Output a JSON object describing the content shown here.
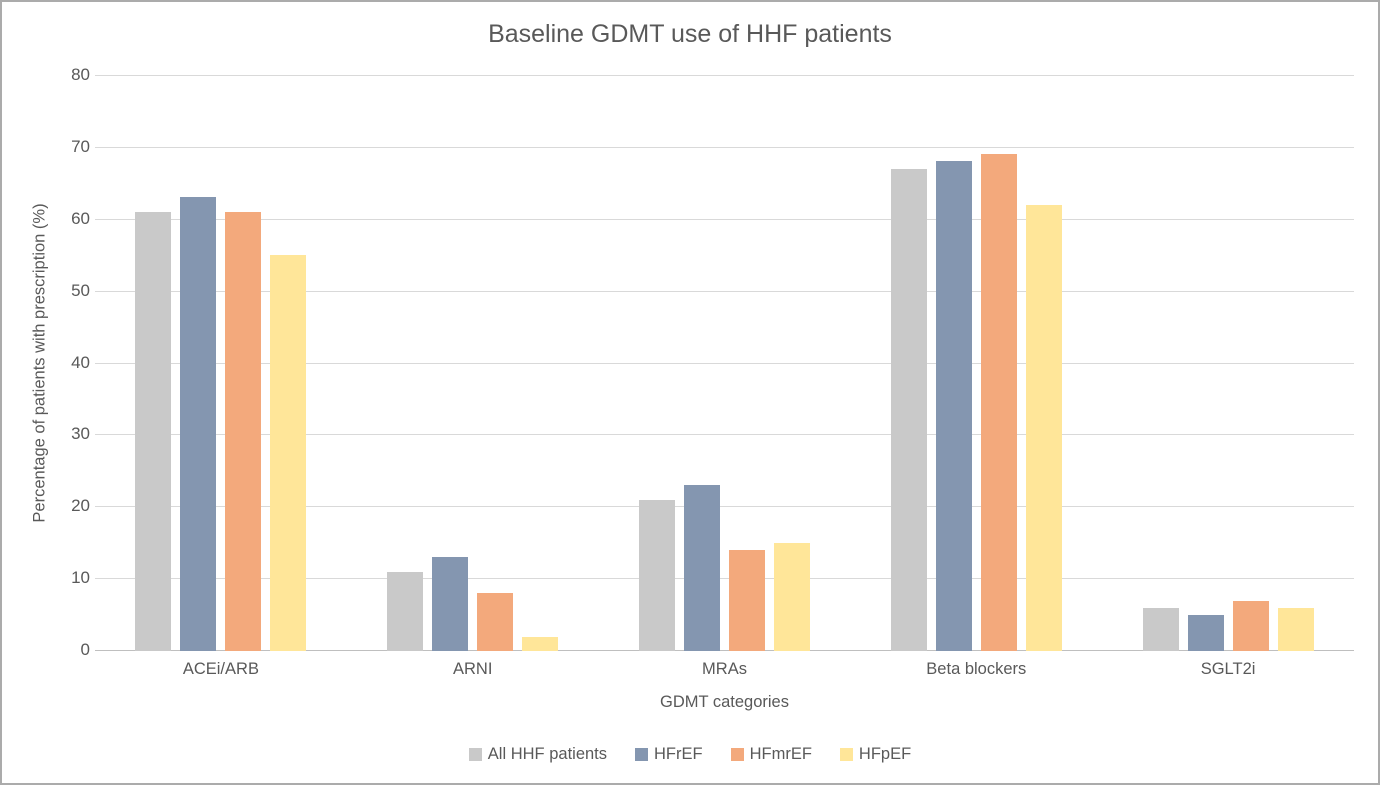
{
  "window": {
    "background": "#FFFFFF",
    "border_color": "#ABABAB"
  },
  "chart_data": {
    "type": "bar",
    "title": "Baseline GDMT use of HHF patients",
    "xlabel": "GDMT categories",
    "ylabel": "Percentage of patients with prescription (%)",
    "categories": [
      "ACEi/ARB",
      "ARNI",
      "MRAs",
      "Beta blockers",
      "SGLT2i"
    ],
    "series": [
      {
        "name": "All HHF patients",
        "color": "#C9C9C9",
        "values": [
          61,
          11,
          21,
          67,
          6
        ]
      },
      {
        "name": "HFrEF",
        "color": "#8496B0",
        "values": [
          63,
          13,
          23,
          68,
          5
        ]
      },
      {
        "name": "HFmrEF",
        "color": "#F3A97C",
        "values": [
          61,
          8,
          14,
          69,
          7
        ]
      },
      {
        "name": "HFpEF",
        "color": "#FFE699",
        "values": [
          55,
          2,
          15,
          62,
          6
        ]
      }
    ],
    "ylim": [
      0,
      80
    ],
    "yticks": [
      0,
      10,
      20,
      30,
      40,
      50,
      60,
      70,
      80
    ],
    "grid": true,
    "legend_position": "bottom",
    "colors": {
      "text": "#595959",
      "gridline": "#D9D9D9",
      "axis_line": "#BFBFBF"
    }
  }
}
